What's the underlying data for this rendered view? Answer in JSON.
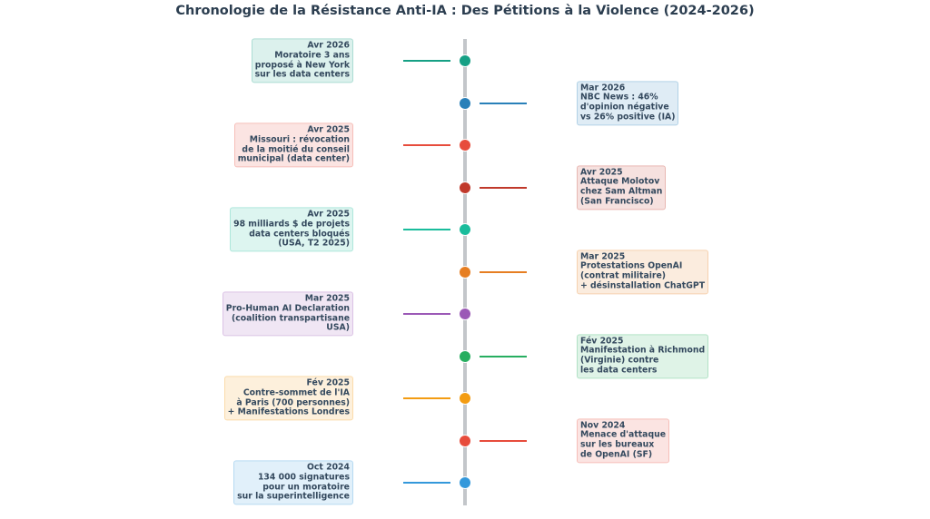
{
  "title": "Chronologie de la Résistance Anti-IA : Des Pétitions à la Violence (2024-2026)",
  "events": [
    {
      "side": "left",
      "date": "Avr 2026",
      "text": "Moratoire 3 ans\nproposé à New York\nsur les data centers",
      "color": "#16a085"
    },
    {
      "side": "right",
      "date": "Mar 2026",
      "text": "NBC News : 46%\nd'opinion négative\nvs 26% positive (IA)",
      "color": "#2980b9"
    },
    {
      "side": "left",
      "date": "Avr 2025",
      "text": "Missouri : révocation\nde la moitié du conseil\nmunicipal (data center)",
      "color": "#e74c3c"
    },
    {
      "side": "right",
      "date": "Avr 2025",
      "text": "Attaque Molotov\nchez Sam Altman\n(San Francisco)",
      "color": "#c0392b"
    },
    {
      "side": "left",
      "date": "Avr 2025",
      "text": "98 milliards $ de projets\ndata centers bloqués\n(USA, T2 2025)",
      "color": "#1abc9c"
    },
    {
      "side": "right",
      "date": "Mar 2025",
      "text": "Protestations OpenAI\n(contrat militaire)\n+ désinstallation ChatGPT",
      "color": "#e67e22"
    },
    {
      "side": "left",
      "date": "Mar 2025",
      "text": "Pro-Human AI Declaration\n(coalition transpartisane\nUSA)",
      "color": "#9b59b6"
    },
    {
      "side": "right",
      "date": "Fév 2025",
      "text": "Manifestation à Richmond\n(Virginie) contre\nles data centers",
      "color": "#27ae60"
    },
    {
      "side": "left",
      "date": "Fév 2025",
      "text": "Contre-sommet de l'IA\nà Paris (700 personnes)\n+ Manifestations Londres",
      "color": "#f39c12"
    },
    {
      "side": "right",
      "date": "Nov 2024",
      "text": "Menace d'attaque\nsur les bureaux\nde OpenAI (SF)",
      "color": "#e74c3c"
    },
    {
      "side": "left",
      "date": "Oct 2024",
      "text": "134 000 signatures\npour un moratoire\nsur la superintelligence",
      "color": "#3498db"
    }
  ]
}
